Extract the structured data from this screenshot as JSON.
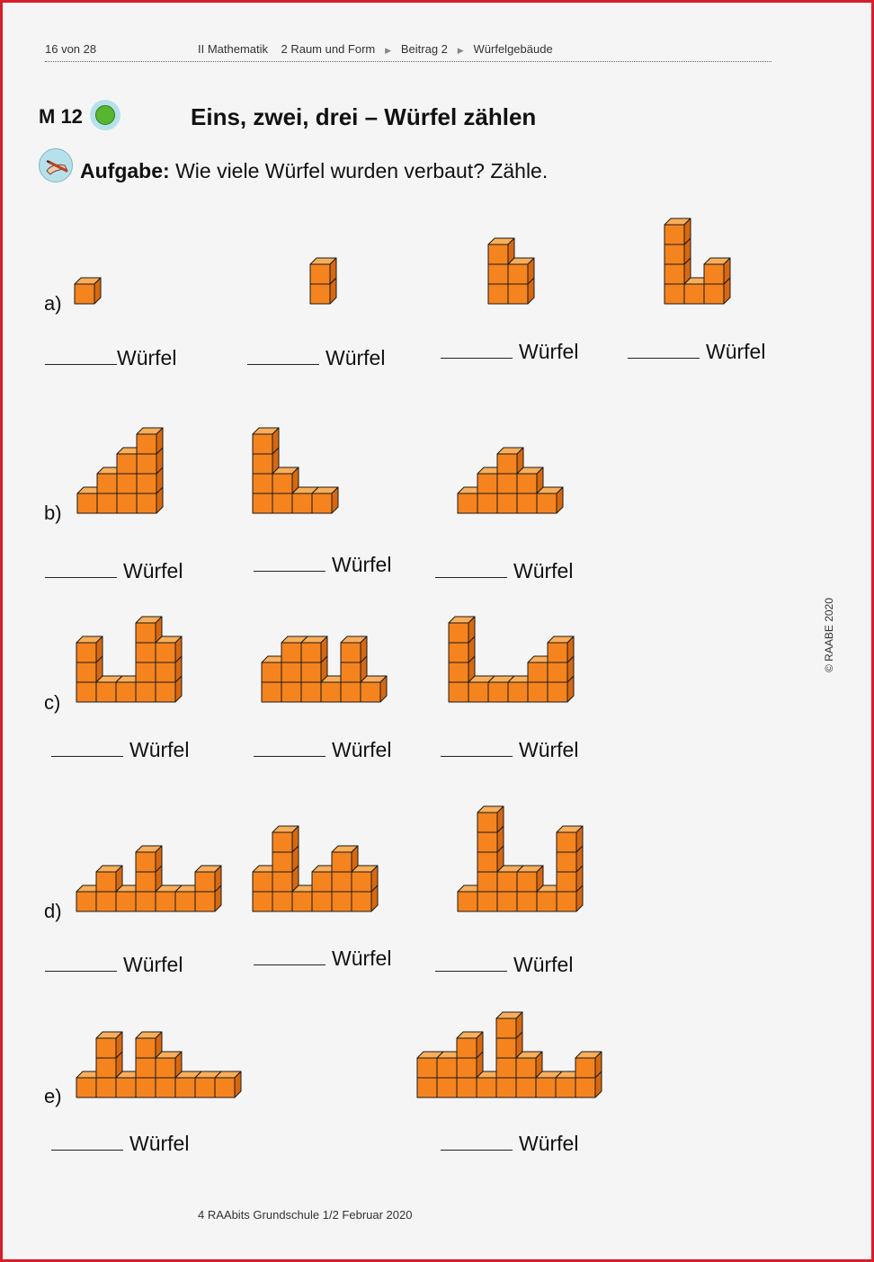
{
  "header": {
    "page": "16 von 28",
    "subject": "II Mathematik",
    "unit": "2 Raum und Form",
    "part": "Beitrag 2",
    "topic": "Würfelgebäude"
  },
  "material": "M 12",
  "title": "Eins, zwei, drei – Würfel zählen",
  "task": {
    "label": "Aufgabe:",
    "text": "Wie viele Würfel wurden verbaut? Zähle."
  },
  "answer_unit": "Würfel",
  "cube_colors": {
    "front": "#f5841f",
    "top": "#fbae5a",
    "side": "#d8680f",
    "edge": "#1a1a1a"
  },
  "rows": [
    {
      "label": "a)",
      "figures": [
        [
          1
        ],
        [
          2
        ],
        [
          3,
          2
        ],
        [
          4,
          1,
          2
        ]
      ]
    },
    {
      "label": "b)",
      "figures": [
        [
          1,
          2,
          3,
          4
        ],
        [
          4,
          2,
          1,
          1
        ],
        [
          1,
          2,
          3,
          2,
          1
        ]
      ]
    },
    {
      "label": "c)",
      "figures": [
        [
          3,
          1,
          1,
          4,
          3
        ],
        [
          2,
          3,
          3,
          1,
          3,
          1
        ],
        [
          4,
          1,
          1,
          1,
          2,
          3
        ]
      ]
    },
    {
      "label": "d)",
      "figures": [
        [
          1,
          2,
          1,
          3,
          1,
          1,
          2
        ],
        [
          2,
          4,
          1,
          2,
          3,
          2
        ],
        [
          1,
          5,
          2,
          2,
          1,
          4
        ]
      ]
    },
    {
      "label": "e)",
      "figures": [
        [
          1,
          3,
          1,
          3,
          2,
          1,
          1,
          1
        ],
        [
          2,
          2,
          3,
          1,
          4,
          2,
          1,
          1,
          2
        ]
      ]
    }
  ],
  "copyright": "© RAABE 2020",
  "footer": "4 RAAbits Grundschule 1/2 Februar 2020"
}
